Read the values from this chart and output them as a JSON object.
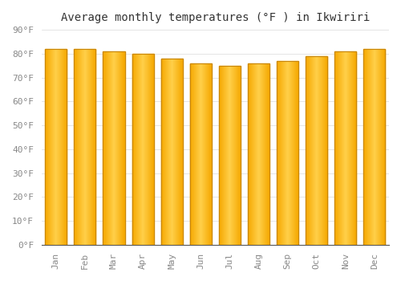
{
  "title": "Average monthly temperatures (°F ) in Ikwiriri",
  "months": [
    "Jan",
    "Feb",
    "Mar",
    "Apr",
    "May",
    "Jun",
    "Jul",
    "Aug",
    "Sep",
    "Oct",
    "Nov",
    "Dec"
  ],
  "values": [
    82,
    82,
    81,
    80,
    78,
    76,
    75,
    76,
    77,
    79,
    81,
    82
  ],
  "bar_color_center": "#FFD04A",
  "bar_color_edge": "#F5A800",
  "bar_outline_color": "#C8860A",
  "background_color": "#FFFFFF",
  "ylim": [
    0,
    90
  ],
  "yticks": [
    0,
    10,
    20,
    30,
    40,
    50,
    60,
    70,
    80,
    90
  ],
  "grid_color": "#e0e0e0",
  "title_fontsize": 10,
  "tick_fontsize": 8,
  "bar_width": 0.75
}
